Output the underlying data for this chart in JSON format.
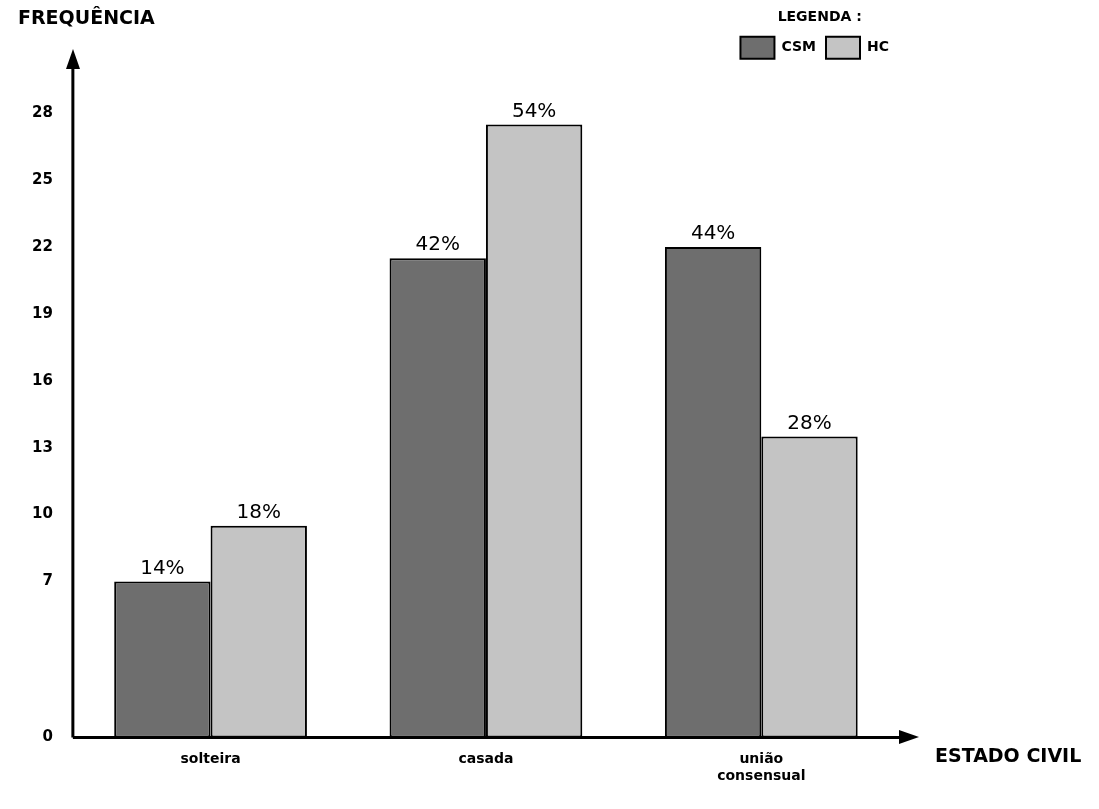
{
  "chart_data": {
    "type": "bar",
    "xlabel": "ESTADO CIVIL",
    "ylabel": "FREQUÊNCIA",
    "legend_title": "LEGENDA :",
    "legend": "top right",
    "grid": false,
    "categories": [
      "solteira",
      "casada",
      "união consensual"
    ],
    "series": [
      {
        "name": "CSM",
        "color": "#6e6e6e",
        "values": [
          7,
          21.5,
          22
        ]
      },
      {
        "name": "HC",
        "color": "#c4c4c4",
        "values": [
          9.5,
          27.5,
          13.5
        ]
      }
    ],
    "annotations": [
      {
        "text": "14%",
        "x": "solteira",
        "y": 7
      },
      {
        "text": "42%",
        "x": "casada",
        "y": 21.5
      },
      {
        "text": "44%",
        "x": "união consensual",
        "y": 22
      },
      {
        "text": "18%",
        "x": "solteira",
        "y": 9.5
      },
      {
        "text": "54%",
        "x": "casada",
        "y": 27.5
      },
      {
        "text": "28%",
        "x": "união consensual",
        "y": 13.5
      }
    ],
    "ylim": [
      0,
      30
    ],
    "yticks": [
      0,
      7,
      10,
      13,
      16,
      19,
      22,
      25,
      28
    ]
  }
}
